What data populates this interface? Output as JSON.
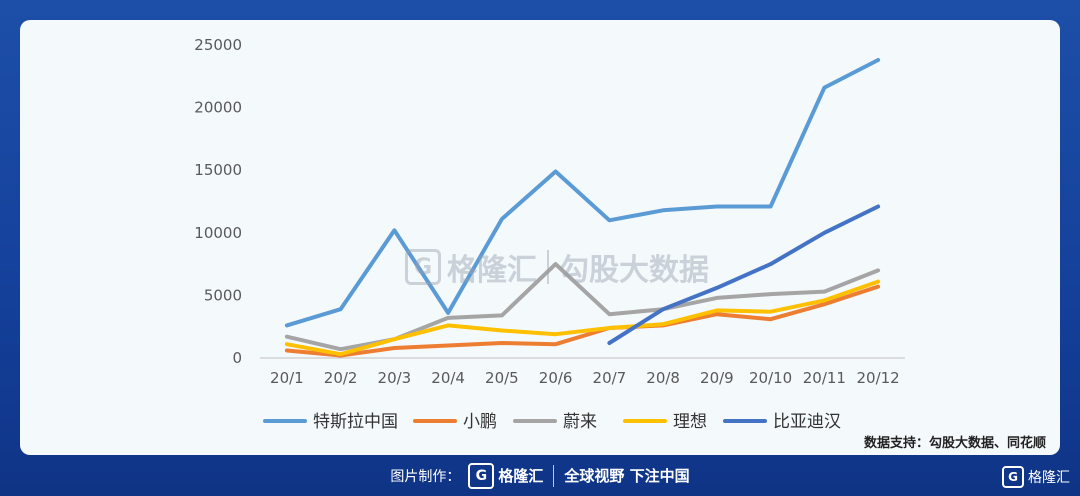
{
  "chart_data": {
    "type": "line",
    "categories": [
      "20/1",
      "20/2",
      "20/3",
      "20/4",
      "20/5",
      "20/6",
      "20/7",
      "20/8",
      "20/9",
      "20/10",
      "20/11",
      "20/12"
    ],
    "ylim": [
      0,
      25000
    ],
    "yticks": [
      0,
      5000,
      10000,
      15000,
      20000,
      25000
    ],
    "grid": false,
    "legend_position": "bottom",
    "series": [
      {
        "name": "特斯拉中国",
        "color": "#5b9bd5",
        "values": [
          2600,
          3900,
          10200,
          3600,
          11100,
          14900,
          11000,
          11800,
          12100,
          12100,
          21600,
          23800
        ]
      },
      {
        "name": "小鹏",
        "color": "#ed7d31",
        "values": [
          600,
          200,
          800,
          1000,
          1200,
          1100,
          2400,
          2600,
          3500,
          3100,
          4300,
          5700
        ]
      },
      {
        "name": "蔚来",
        "color": "#a5a5a5",
        "values": [
          1700,
          700,
          1500,
          3200,
          3400,
          7500,
          3500,
          3900,
          4800,
          5100,
          5300,
          7000
        ]
      },
      {
        "name": "理想",
        "color": "#ffc000",
        "values": [
          1100,
          300,
          1500,
          2600,
          2200,
          1900,
          2400,
          2700,
          3800,
          3700,
          4600,
          6100
        ]
      },
      {
        "name": "比亚迪汉",
        "color": "#4472c4",
        "values": [
          null,
          null,
          null,
          null,
          null,
          null,
          1200,
          3900,
          5600,
          7500,
          10000,
          12100
        ]
      }
    ]
  },
  "source_text": "数据支持：勾股大数据、同花顺",
  "watermark": {
    "logo": "G",
    "brand": "格隆汇",
    "divider": "|",
    "text": "勾股大数据"
  },
  "footer": {
    "label": "图片制作：",
    "logo": "G",
    "brand": "格隆汇",
    "slogan": "全球视野 下注中国"
  },
  "corner_logo": {
    "logo": "G",
    "brand": "格隆汇"
  }
}
